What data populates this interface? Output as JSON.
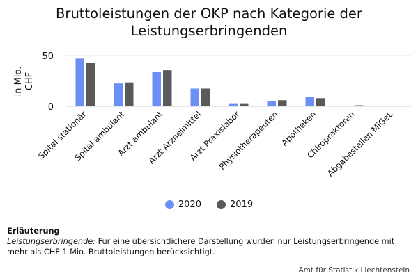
{
  "chart_data": {
    "type": "bar",
    "title": "Bruttoleistungen der OKP nach Kategorie der Leistungserbringenden",
    "title_lines": [
      "Bruttoleistungen der OKP nach Kategorie der",
      "Leistungserbringenden"
    ],
    "ylabel_lines": [
      "in Mio.",
      "CHF"
    ],
    "xlabel": "",
    "ylim": [
      0,
      50
    ],
    "yticks": [
      0,
      50
    ],
    "grid": true,
    "legend_position": "bottom",
    "categories": [
      "Spital stationär",
      "Spital ambulant",
      "Arzt ambulant",
      "Arzt Arzneimittel",
      "Arzt Praxislabor",
      "Physiotherapeuten",
      "Apotheken",
      "Chiropraktoren",
      "Abgabestellen MiGeL"
    ],
    "series": [
      {
        "name": "2020",
        "color": "#6b8ff5",
        "values": [
          47,
          22.5,
          34,
          17.5,
          3,
          5.5,
          9,
          0.7,
          0.7
        ]
      },
      {
        "name": "2019",
        "color": "#5a5a5a",
        "values": [
          43,
          23.5,
          35.5,
          17.5,
          3,
          6,
          8,
          1,
          0.7
        ]
      }
    ]
  },
  "notes": {
    "heading": "Erläuterung",
    "label": "Leistungserbringende:",
    "text": " Für eine übersichtlichere Darstellung wurden nur Leistungserbringende mit mehr als CHF 1 Mio. Bruttoleistungen berücksichtigt."
  },
  "source": "Amt für Statistik Liechtenstein"
}
